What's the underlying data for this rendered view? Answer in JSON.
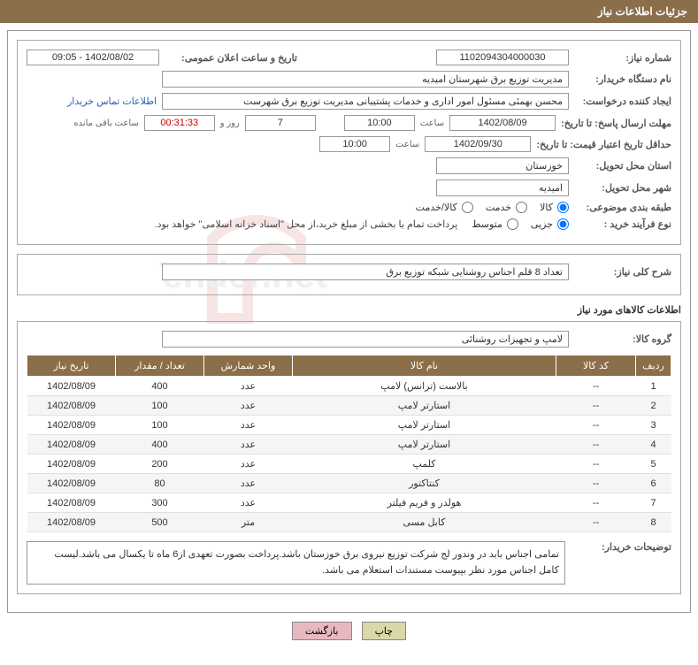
{
  "header": {
    "title": "جزئیات اطلاعات نیاز"
  },
  "fields": {
    "need_no_label": "شماره نیاز:",
    "need_no": "1102094304000030",
    "announce_label": "تاریخ و ساعت اعلان عمومی:",
    "announce": "1402/08/02 - 09:05",
    "buyer_org_label": "نام دستگاه خریدار:",
    "buyer_org": "مدیریت توزیع برق شهرستان امیدیه",
    "requester_label": "ایجاد کننده درخواست:",
    "requester": "محسن بهمئی مسئول امور اداری و خدمات پشتیبانی مدیریت توزیع برق شهرست",
    "contact_link": "اطلاعات تماس خریدار",
    "deadline_label": "مهلت ارسال پاسخ: تا تاریخ:",
    "deadline_date": "1402/08/09",
    "time_label": "ساعت",
    "deadline_time": "10:00",
    "days_label": "روز و",
    "days": "7",
    "remaining_label": "ساعت باقی مانده",
    "remaining": "00:31:33",
    "validity_label": "حداقل تاریخ اعتبار قیمت: تا تاریخ:",
    "validity_date": "1402/09/30",
    "validity_time": "10:00",
    "province_label": "استان محل تحویل:",
    "province": "خوزستان",
    "city_label": "شهر محل تحویل:",
    "city": "امیدیه",
    "category_label": "طبقه بندی موضوعی:",
    "cat_goods": "کالا",
    "cat_service": "خدمت",
    "cat_both": "کالا/خدمت",
    "purchase_type_label": "نوع فرآیند خرید :",
    "pt_minor": "جزیی",
    "pt_medium": "متوسط",
    "purchase_note": "پرداخت تمام یا بخشی از مبلغ خرید،از محل \"اسناد خزانه اسلامی\" خواهد بود.",
    "summary_label": "شرح کلی نیاز:",
    "summary": "تعداد 8 قلم اجناس روشنایی شبکه توزیع برق",
    "items_title": "اطلاعات کالاهای مورد نیاز",
    "group_label": "گروه کالا:",
    "group": "لامپ و تجهیزات روشنائی",
    "buyer_desc_label": "توضیحات خریدار:",
    "buyer_desc": "تمامی اجناس باید در وندور لج شرکت توزیع نیروی برق خوزستان باشد.پرداخت بصورت تعهدی از6 ماه تا یکسال می باشد.لیست کامل اجناس مورد نظر بپیوست مستندات استعلام می باشد."
  },
  "table": {
    "headers": {
      "row": "ردیف",
      "code": "کد کالا",
      "name": "نام کالا",
      "unit": "واحد شمارش",
      "qty": "تعداد / مقدار",
      "date": "تاریخ نیاز"
    },
    "rows": [
      {
        "n": "1",
        "code": "--",
        "name": "بالاست (ترانس) لامپ",
        "unit": "عدد",
        "qty": "400",
        "date": "1402/08/09"
      },
      {
        "n": "2",
        "code": "--",
        "name": "استارتر لامپ",
        "unit": "عدد",
        "qty": "100",
        "date": "1402/08/09"
      },
      {
        "n": "3",
        "code": "--",
        "name": "استارتر لامپ",
        "unit": "عدد",
        "qty": "100",
        "date": "1402/08/09"
      },
      {
        "n": "4",
        "code": "--",
        "name": "استارتر لامپ",
        "unit": "عدد",
        "qty": "400",
        "date": "1402/08/09"
      },
      {
        "n": "5",
        "code": "--",
        "name": "کلمپ",
        "unit": "عدد",
        "qty": "200",
        "date": "1402/08/09"
      },
      {
        "n": "6",
        "code": "--",
        "name": "کنتاکتور",
        "unit": "عدد",
        "qty": "80",
        "date": "1402/08/09"
      },
      {
        "n": "7",
        "code": "--",
        "name": "هولدر و فریم فیلتر",
        "unit": "عدد",
        "qty": "300",
        "date": "1402/08/09"
      },
      {
        "n": "8",
        "code": "--",
        "name": "کابل مسی",
        "unit": "متر",
        "qty": "500",
        "date": "1402/08/09"
      }
    ]
  },
  "actions": {
    "print": "چاپ",
    "back": "بازگشت"
  }
}
